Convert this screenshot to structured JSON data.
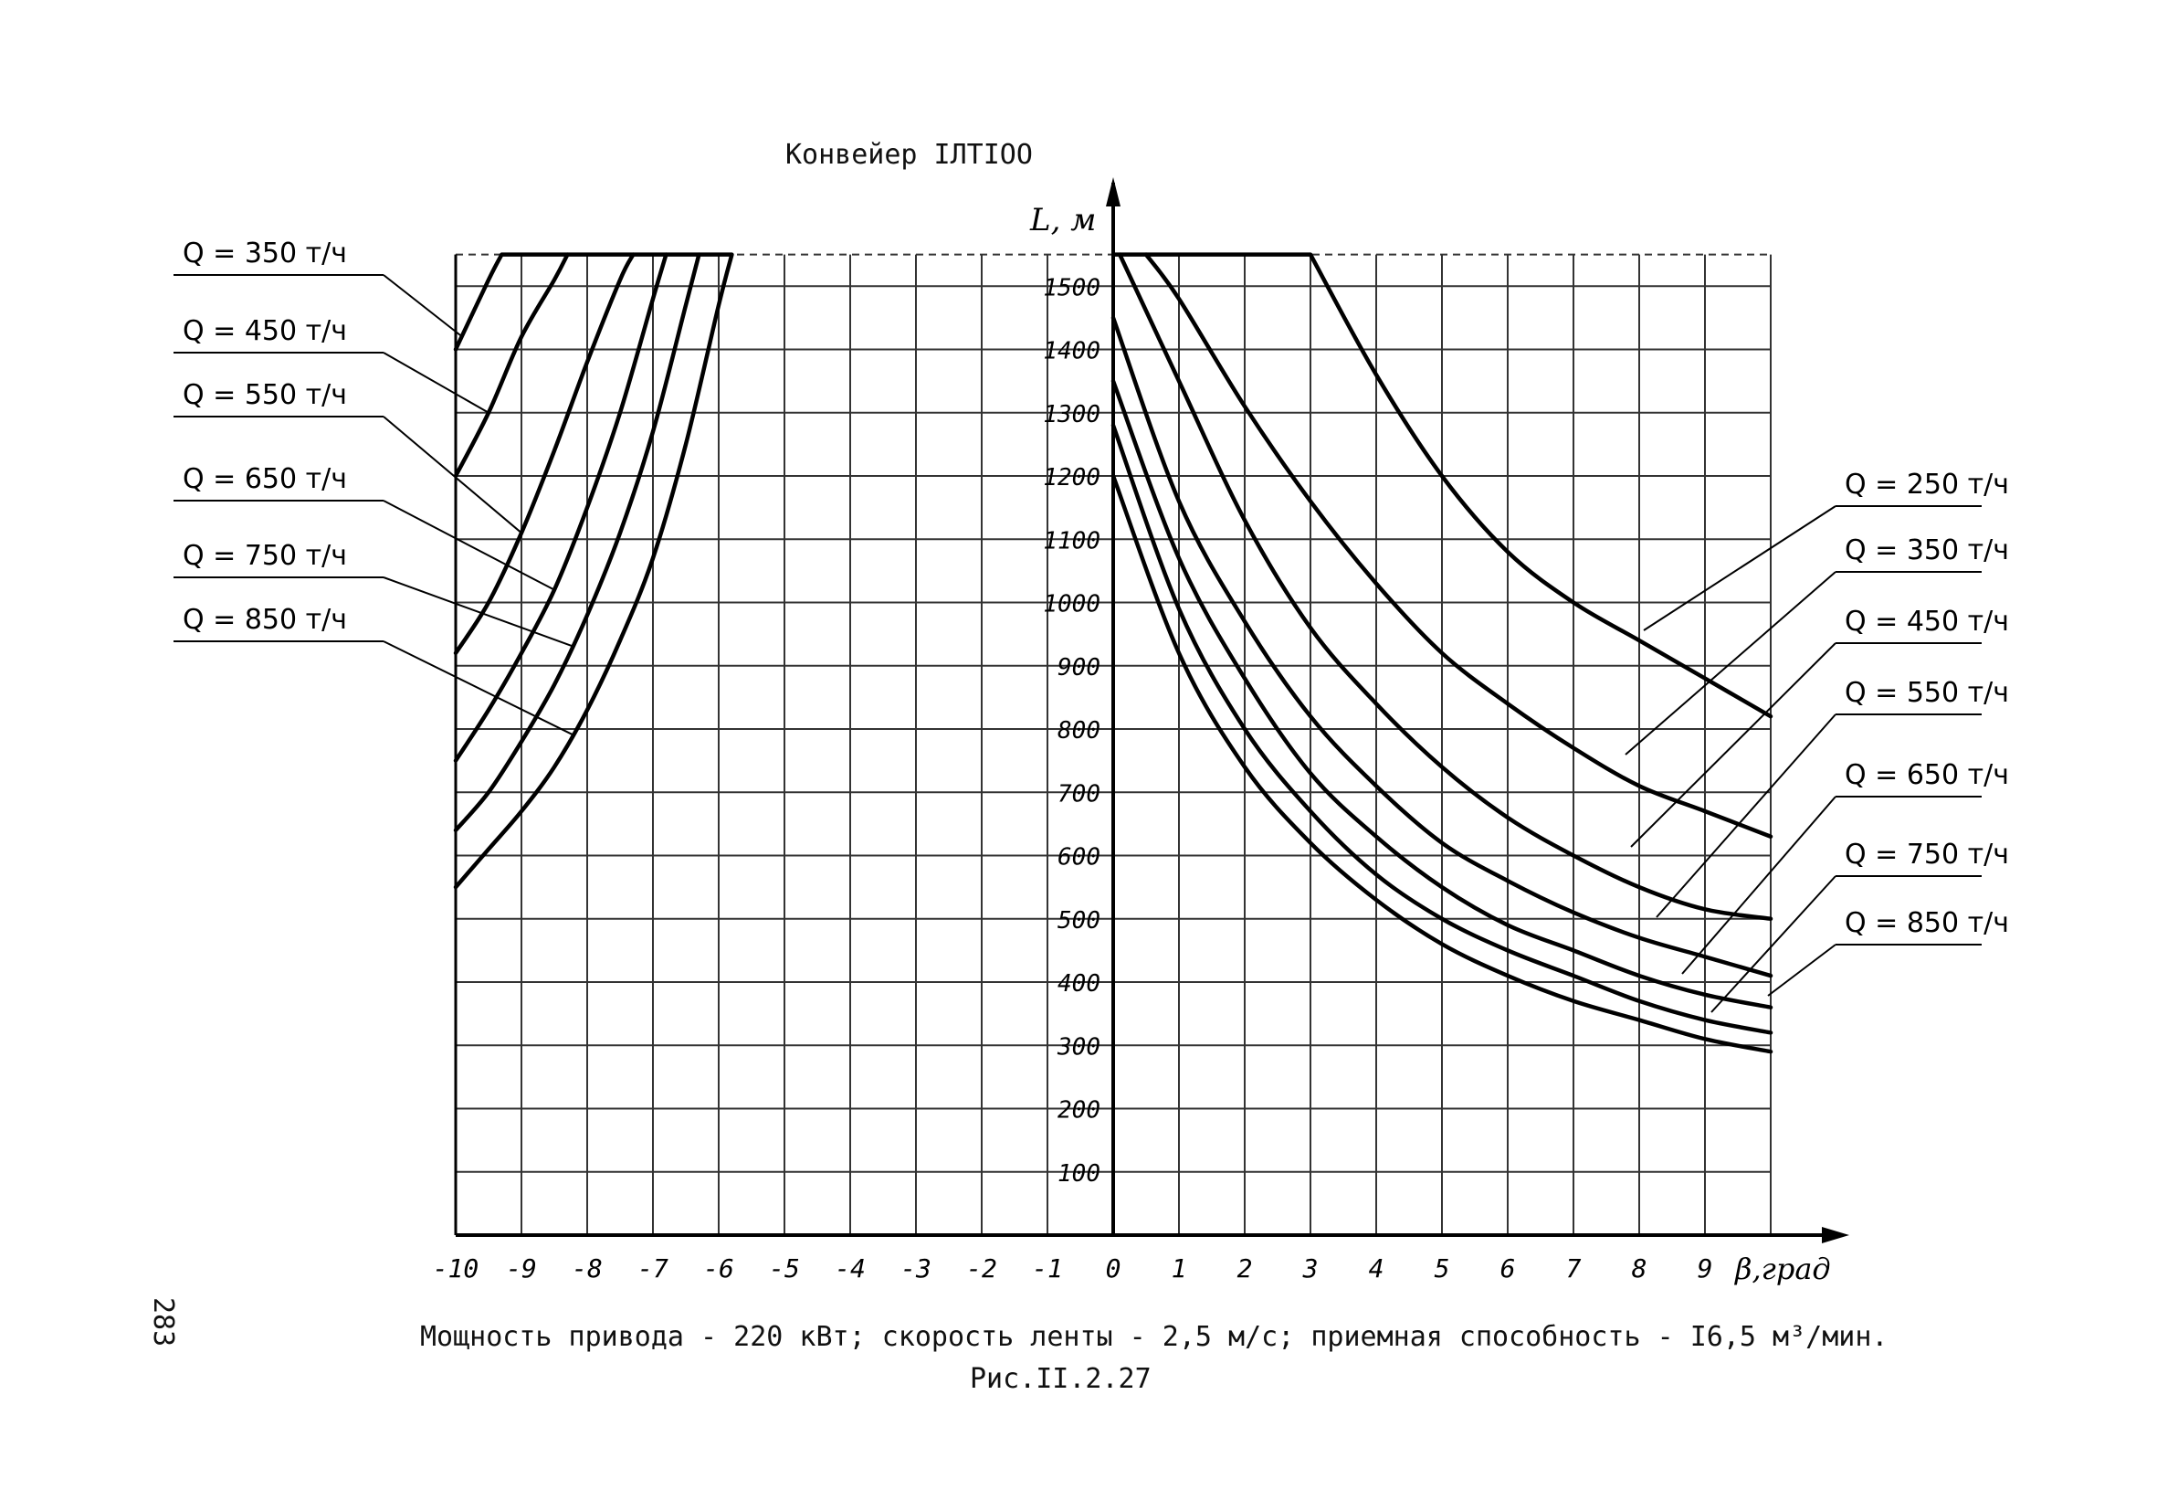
{
  "chart_data": {
    "type": "line",
    "title": "Конвейер IЛТIOO",
    "xlabel": "β,град",
    "ylabel": "L, м",
    "xlim": [
      -10,
      10
    ],
    "ylim": [
      0,
      1550
    ],
    "x_ticks": [
      "-10",
      "-9",
      "-8",
      "-7",
      "-6",
      "-5",
      "-4",
      "-3",
      "-2",
      "-1",
      "0",
      "1",
      "2",
      "3",
      "4",
      "5",
      "6",
      "7",
      "8",
      "9"
    ],
    "y_ticks": [
      "100",
      "200",
      "300",
      "400",
      "500",
      "600",
      "700",
      "800",
      "900",
      "1000",
      "1100",
      "1200",
      "1300",
      "1400",
      "1500"
    ],
    "grid": true,
    "max_length": 1550,
    "series": [
      {
        "name": "Q = 250 т/ч",
        "side": "right",
        "x": [
          3,
          4,
          5,
          6,
          7,
          8,
          9,
          10
        ],
        "y": [
          1550,
          1360,
          1200,
          1080,
          1000,
          940,
          880,
          820
        ]
      },
      {
        "name": "Q = 350 т/ч",
        "side": "right",
        "x": [
          0.5,
          1,
          2,
          3,
          4,
          5,
          6,
          7,
          8,
          9,
          10
        ],
        "y": [
          1550,
          1480,
          1310,
          1160,
          1030,
          920,
          840,
          770,
          710,
          670,
          630
        ]
      },
      {
        "name": "Q = 450 т/ч",
        "side": "right",
        "x": [
          0.1,
          1,
          2,
          3,
          4,
          5,
          6,
          7,
          8,
          9,
          10
        ],
        "y": [
          1550,
          1350,
          1130,
          960,
          840,
          740,
          660,
          600,
          550,
          515,
          500
        ]
      },
      {
        "name": "Q = 550 т/ч",
        "side": "right",
        "x": [
          0,
          1,
          2,
          3,
          4,
          5,
          6,
          7,
          8,
          9,
          10
        ],
        "y": [
          1450,
          1160,
          970,
          820,
          710,
          620,
          560,
          510,
          470,
          440,
          410
        ]
      },
      {
        "name": "Q = 650 т/ч",
        "side": "right",
        "x": [
          0,
          1,
          2,
          3,
          4,
          5,
          6,
          7,
          8,
          9,
          10
        ],
        "y": [
          1350,
          1070,
          880,
          730,
          630,
          550,
          490,
          450,
          410,
          380,
          360
        ]
      },
      {
        "name": "Q = 750 т/ч",
        "side": "right",
        "x": [
          0,
          1,
          2,
          3,
          4,
          5,
          6,
          7,
          8,
          9,
          10
        ],
        "y": [
          1280,
          990,
          800,
          670,
          570,
          500,
          450,
          410,
          370,
          340,
          320
        ]
      },
      {
        "name": "Q = 850 т/ч",
        "side": "right",
        "x": [
          0,
          1,
          2,
          3,
          4,
          5,
          6,
          7,
          8,
          9,
          10
        ],
        "y": [
          1200,
          920,
          740,
          620,
          530,
          460,
          410,
          370,
          340,
          310,
          290
        ]
      },
      {
        "name": "Q = 350 т/ч",
        "side": "left",
        "x": [
          -10,
          -9.5,
          -9.3
        ],
        "y": [
          1400,
          1510,
          1550
        ]
      },
      {
        "name": "Q = 450 т/ч",
        "side": "left",
        "x": [
          -10,
          -9.5,
          -9,
          -8.5,
          -8.3
        ],
        "y": [
          1200,
          1300,
          1420,
          1510,
          1550
        ]
      },
      {
        "name": "Q = 550 т/ч",
        "side": "left",
        "x": [
          -10,
          -9.5,
          -9,
          -8.5,
          -8,
          -7.5,
          -7.3
        ],
        "y": [
          920,
          1000,
          1110,
          1240,
          1380,
          1510,
          1550
        ]
      },
      {
        "name": "Q = 650 т/ч",
        "side": "left",
        "x": [
          -10,
          -9.5,
          -9,
          -8.5,
          -8,
          -7.5,
          -7,
          -6.8
        ],
        "y": [
          750,
          830,
          920,
          1020,
          1150,
          1300,
          1480,
          1550
        ]
      },
      {
        "name": "Q = 750 т/ч",
        "side": "left",
        "x": [
          -10,
          -9.5,
          -9,
          -8.5,
          -8,
          -7.5,
          -7,
          -6.5,
          -6.3
        ],
        "y": [
          640,
          700,
          780,
          870,
          980,
          1110,
          1270,
          1470,
          1550
        ]
      },
      {
        "name": "Q = 850 т/ч",
        "side": "left",
        "x": [
          -10,
          -9.5,
          -9,
          -8.5,
          -8,
          -7.5,
          -7,
          -6.5,
          -6,
          -5.8
        ],
        "y": [
          550,
          610,
          670,
          740,
          830,
          940,
          1070,
          1250,
          1470,
          1550
        ]
      }
    ],
    "annotations": {
      "caption_line1": "Мощность привода - 220 кВт; скорость ленты - 2,5 м/с; приемная способность - I6,5 м³/мин.",
      "caption_line2": "Рис.II.2.27",
      "page_number": "283"
    }
  }
}
